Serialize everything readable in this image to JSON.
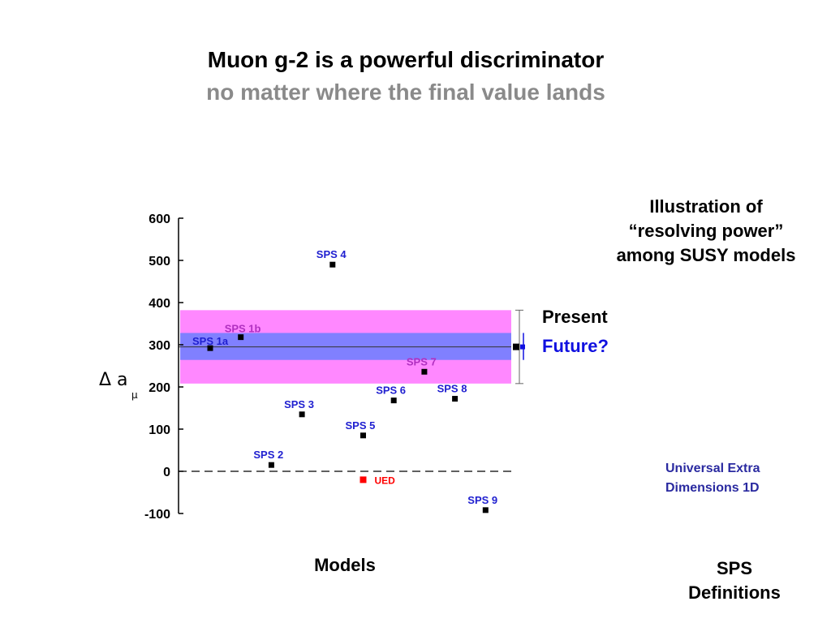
{
  "slide": {
    "title": "Muon g-2 is a powerful discriminator",
    "subtitle": "no matter where the final value lands",
    "resolving_note": [
      "Illustration of",
      "“resolving power”",
      "among SUSY models"
    ],
    "ued_note": [
      "Universal Extra",
      "Dimensions 1D"
    ],
    "models_label": "Models",
    "sps_definitions": [
      "SPS",
      "Definitions"
    ]
  },
  "colors": {
    "present_band": "#ff88ff",
    "future_band": "#8080ff",
    "sps_label": "#2020d0",
    "sps7_label": "#b030c0",
    "ued": "#ff0000",
    "title_sub": "#8a8a8a",
    "future_text": "#1010e0"
  },
  "chart_data": {
    "type": "scatter",
    "ylabel": "Δ a",
    "ylabel_subscript": "μ",
    "ylim": [
      -100,
      600
    ],
    "yticks": [
      -100,
      0,
      100,
      200,
      300,
      400,
      500,
      600
    ],
    "grid": false,
    "central_value": 295,
    "zero_line": "dashed",
    "bands": [
      {
        "name": "Present",
        "low": 208,
        "high": 382
      },
      {
        "name": "Future?",
        "low": 264,
        "high": 328
      }
    ],
    "points": [
      {
        "label": "SPS 1a",
        "x": 1,
        "y": 292
      },
      {
        "label": "SPS 1b",
        "x": 2,
        "y": 318
      },
      {
        "label": "SPS 2",
        "x": 3,
        "y": 15
      },
      {
        "label": "SPS 3",
        "x": 4,
        "y": 135
      },
      {
        "label": "SPS 4",
        "x": 5,
        "y": 490
      },
      {
        "label": "SPS 5",
        "x": 6,
        "y": 85
      },
      {
        "label": "SPS 6",
        "x": 7,
        "y": 168
      },
      {
        "label": "SPS 7",
        "x": 8,
        "y": 236
      },
      {
        "label": "SPS 8",
        "x": 9,
        "y": 172
      },
      {
        "label": "SPS 9",
        "x": 10,
        "y": -92
      }
    ],
    "ued_point": {
      "label": "UED",
      "x": 6,
      "y": -20
    }
  }
}
